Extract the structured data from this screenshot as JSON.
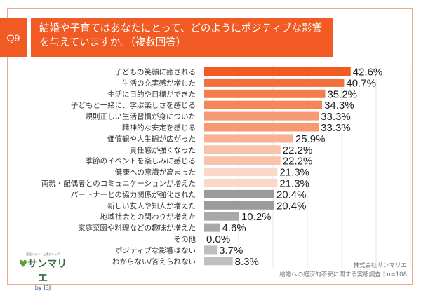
{
  "header": {
    "q": "Q9",
    "title": "結婚や子育てはあなたにとって、どのようにポジティブな影響を与えていますか。（複数回答）"
  },
  "chart_data": {
    "type": "bar",
    "orientation": "horizontal",
    "unit": "%",
    "xlim": [
      0,
      60
    ],
    "grid": true,
    "categories": [
      "子どもの笑顔に癒される",
      "生活の充実感が増した",
      "生活に目的や目標ができた",
      "子どもと一緒に、学ぶ楽しさを感じる",
      "規則正しい生活習慣が身についた",
      "精神的な安定を感じる",
      "価値観や人生観が広がった",
      "責任感が強くなった",
      "季節のイベントを楽しみに感じる",
      "健康への意識が高まった",
      "両親・配偶者とのコミュニケーションが増えた",
      "パートナーとの協力関係が強化された",
      "新しい友人や知人が増えた",
      "地域社会との関わりが増えた",
      "家庭菜園や料理などの趣味が増えた",
      "その他",
      "ポジティブな影響はない",
      "わからない/答えられない"
    ],
    "values": [
      42.6,
      40.7,
      35.2,
      34.3,
      33.3,
      33.3,
      25.9,
      22.2,
      22.2,
      21.3,
      21.3,
      20.4,
      20.4,
      10.2,
      4.6,
      0.0,
      3.7,
      8.3
    ],
    "labels": [
      "42.6%",
      "40.7%",
      "35.2%",
      "34.3%",
      "33.3%",
      "33.3%",
      "25.9%",
      "22.2%",
      "22.2%",
      "21.3%",
      "21.3%",
      "20.4%",
      "20.4%",
      "10.2%",
      "4.6%",
      "0.0%",
      "3.7%",
      "8.3%"
    ],
    "colors": [
      "#f15a22",
      "#f2703d",
      "#f37d4c",
      "#f48658",
      "#f59a73",
      "#f59a73",
      "#f7b294",
      "#f8c3aa",
      "#f8c3aa",
      "#fad8c8",
      "#fad8c8",
      "#9b9b9b",
      "#9b9b9b",
      "#a8a8a8",
      "#a8a8a8",
      "#bfbfbf",
      "#bfbfbf",
      "#bfbfbf"
    ]
  },
  "logo": {
    "tagline": "東証プライム上場グループ",
    "name": "サンマリエ",
    "by": "by IBJ"
  },
  "source": {
    "company": "株式会社サンマリエ",
    "survey": "結婚への経済的不安に関する実態調査｜n=108"
  }
}
